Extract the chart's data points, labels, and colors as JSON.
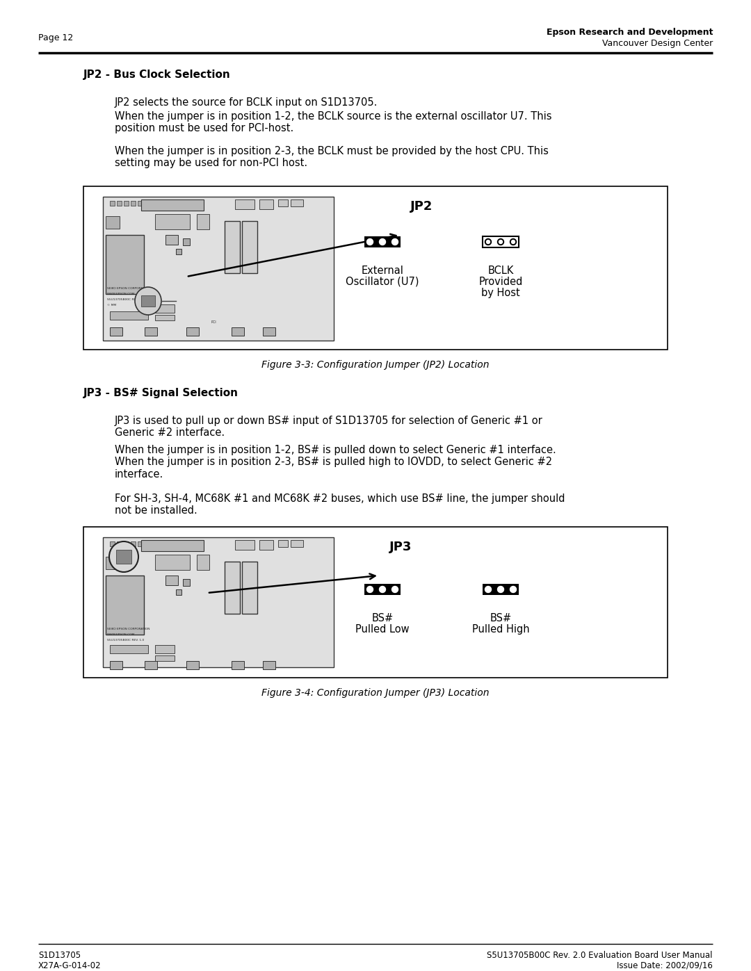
{
  "page_number": "Page 12",
  "header_right_line1": "Epson Research and Development",
  "header_right_line2": "Vancouver Design Center",
  "footer_left_line1": "S1D13705",
  "footer_left_line2": "X27A-G-014-02",
  "footer_right_line1": "S5U13705B00C Rev. 2.0 Evaluation Board User Manual",
  "footer_right_line2": "Issue Date: 2002/09/16",
  "section1_title": "JP2 - Bus Clock Selection",
  "section1_para1": "JP2 selects the source for BCLK input on S1D13705.",
  "section1_para2": "When the jumper is in position 1-2, the BCLK source is the external oscillator U7. This\nposition must be used for PCI-host.",
  "section1_para3": "When the jumper is in position 2-3, the BCLK must be provided by the host CPU. This\nsetting may be used for non-PCI host.",
  "fig1_title": "JP2",
  "fig1_label1_line1": "External",
  "fig1_label1_line2": "Oscillator (U7)",
  "fig1_label2_line1": "BCLK",
  "fig1_label2_line2": "Provided",
  "fig1_label2_line3": "by Host",
  "fig1_caption": "Figure 3-3: Configuration Jumper (JP2) Location",
  "section2_title": "JP3 - BS# Signal Selection",
  "section2_para1": "JP3 is used to pull up or down BS# input of S1D13705 for selection of Generic #1 or\nGeneric #2 interface.",
  "section2_para2": "When the jumper is in position 1-2, BS# is pulled down to select Generic #1 interface.\nWhen the jumper is in position 2-3, BS# is pulled high to IOVDD, to select Generic #2\ninterface.",
  "section2_para3": "For SH-3, SH-4, MC68K #1 and MC68K #2 buses, which use BS# line, the jumper should\nnot be installed.",
  "fig2_title": "JP3",
  "fig2_label1_line1": "BS#",
  "fig2_label1_line2": "Pulled Low",
  "fig2_label2_line1": "BS#",
  "fig2_label2_line2": "Pulled High",
  "fig2_caption": "Figure 3-4: Configuration Jumper (JP3) Location",
  "bg_color": "#ffffff",
  "text_color": "#000000",
  "line_color": "#000000"
}
